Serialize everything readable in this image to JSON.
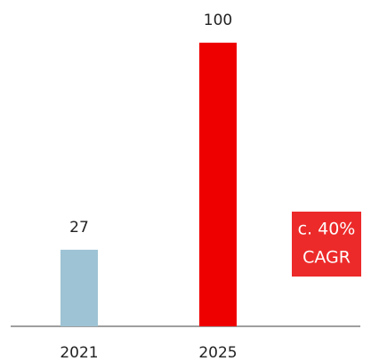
{
  "chart_data": {
    "type": "bar",
    "categories": [
      "2021",
      "2025"
    ],
    "values": [
      27,
      100
    ],
    "colors": [
      "#9dc3d4",
      "#ee0000"
    ],
    "ylim": [
      0,
      100
    ],
    "annotation": [
      "c. 40%",
      "CAGR"
    ],
    "annotation_color": "#ec2a2a"
  }
}
